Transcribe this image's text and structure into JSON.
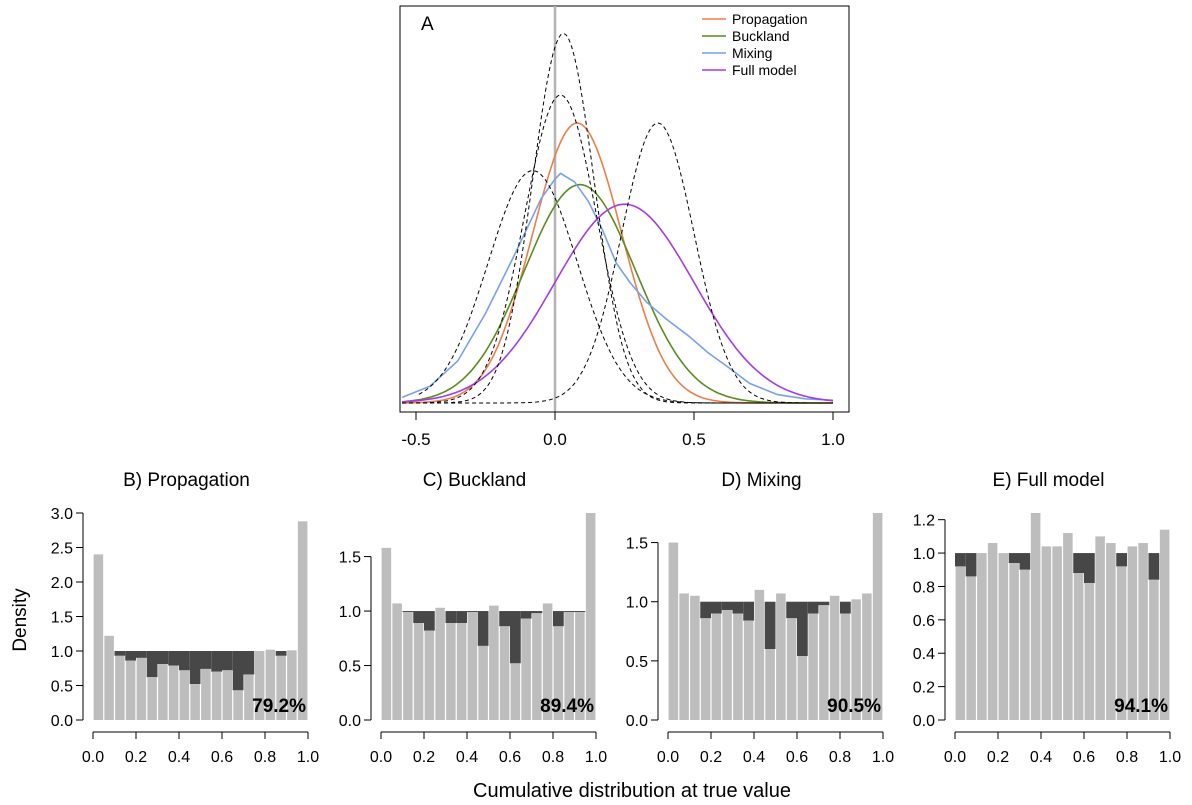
{
  "figure": {
    "ylabel": "Density",
    "xlabel": "Cumulative distribution at true value"
  },
  "chart_data": [
    {
      "type": "line",
      "panel_label": "A",
      "xlim": [
        -0.55,
        1.0
      ],
      "x_ticks": [
        "-0.5",
        "0.0",
        "0.5",
        "1.0"
      ],
      "reference_line_x": 0.0,
      "legend_position": "top-right",
      "series": [
        {
          "name": "Propagation",
          "color": "#EF7D4A",
          "kind": "gaussian",
          "mean": 0.08,
          "sd": 0.16,
          "peak": 1.0
        },
        {
          "name": "Buckland",
          "color": "#5A8C22",
          "kind": "gaussian",
          "mean": 0.09,
          "sd": 0.2,
          "peak": 0.78
        },
        {
          "name": "Mixing",
          "color": "#79A1EC",
          "kind": "points",
          "points": [
            [
              -0.55,
              0.02
            ],
            [
              -0.45,
              0.06
            ],
            [
              -0.35,
              0.15
            ],
            [
              -0.25,
              0.32
            ],
            [
              -0.15,
              0.52
            ],
            [
              -0.05,
              0.73
            ],
            [
              0.0,
              0.8
            ],
            [
              0.02,
              0.82
            ],
            [
              0.07,
              0.79
            ],
            [
              0.12,
              0.72
            ],
            [
              0.17,
              0.62
            ],
            [
              0.22,
              0.5
            ],
            [
              0.27,
              0.43
            ],
            [
              0.33,
              0.36
            ],
            [
              0.4,
              0.3
            ],
            [
              0.48,
              0.24
            ],
            [
              0.55,
              0.18
            ],
            [
              0.62,
              0.13
            ],
            [
              0.7,
              0.07
            ],
            [
              0.8,
              0.03
            ],
            [
              0.9,
              0.015
            ],
            [
              1.0,
              0.01
            ]
          ]
        },
        {
          "name": "Full model",
          "color": "#A43CE6",
          "kind": "gaussian",
          "mean": 0.25,
          "sd": 0.25,
          "peak": 0.71
        },
        {
          "name": "",
          "color": "#000000",
          "dashed": true,
          "kind": "gaussian",
          "mean": 0.03,
          "sd": 0.11,
          "peak": 1.32
        },
        {
          "name": "",
          "color": "#000000",
          "dashed": true,
          "kind": "gaussian",
          "mean": 0.02,
          "sd": 0.13,
          "peak": 1.1
        },
        {
          "name": "",
          "color": "#000000",
          "dashed": true,
          "kind": "gaussian",
          "mean": -0.08,
          "sd": 0.16,
          "peak": 0.83,
          "xrange": [
            -0.49,
            1.0
          ]
        },
        {
          "name": "",
          "color": "#000000",
          "dashed": true,
          "kind": "gaussian",
          "mean": 0.37,
          "sd": 0.13,
          "peak": 1.0
        }
      ]
    },
    {
      "type": "bar",
      "panel_label": "B) Propagation",
      "ylim": [
        0,
        3.0
      ],
      "y_ticks": [
        "0.0",
        "0.5",
        "1.0",
        "1.5",
        "2.0",
        "2.5",
        "3.0"
      ],
      "x_ticks": [
        "0.0",
        "0.2",
        "0.4",
        "0.6",
        "0.8",
        "1.0"
      ],
      "values": [
        2.4,
        1.22,
        0.93,
        0.86,
        0.9,
        0.62,
        0.81,
        0.79,
        0.72,
        0.52,
        0.74,
        0.7,
        0.72,
        0.43,
        0.66,
        1.0,
        1.02,
        0.93,
        1.01,
        2.88
      ],
      "annotation": "79.2%"
    },
    {
      "type": "bar",
      "panel_label": "C) Buckland",
      "ylim": [
        0,
        1.9
      ],
      "y_ticks": [
        "0.0",
        "0.5",
        "1.0",
        "1.5"
      ],
      "x_ticks": [
        "0.0",
        "0.2",
        "0.4",
        "0.6",
        "0.8",
        "1.0"
      ],
      "values": [
        1.58,
        1.07,
        0.99,
        0.89,
        0.82,
        1.03,
        0.89,
        0.89,
        0.99,
        0.68,
        1.05,
        0.86,
        0.52,
        0.93,
        0.98,
        1.07,
        0.86,
        0.99,
        0.99,
        1.9
      ],
      "annotation": "89.4%"
    },
    {
      "type": "bar",
      "panel_label": "D) Mixing",
      "ylim": [
        0,
        1.75
      ],
      "y_ticks": [
        "0.0",
        "0.5",
        "1.0",
        "1.5"
      ],
      "x_ticks": [
        "0.0",
        "0.2",
        "0.4",
        "0.6",
        "0.8",
        "1.0"
      ],
      "values": [
        1.5,
        1.07,
        1.05,
        0.86,
        0.9,
        0.93,
        0.9,
        0.84,
        1.1,
        0.6,
        1.07,
        0.86,
        0.54,
        0.9,
        0.97,
        1.05,
        0.9,
        1.02,
        1.07,
        1.75
      ],
      "annotation": "90.5%"
    },
    {
      "type": "bar",
      "panel_label": "E) Full model",
      "ylim": [
        0,
        1.24
      ],
      "y_ticks": [
        "0.0",
        "0.2",
        "0.4",
        "0.6",
        "0.8",
        "1.0",
        "1.2"
      ],
      "x_ticks": [
        "0.0",
        "0.2",
        "0.4",
        "0.6",
        "0.8",
        "1.0"
      ],
      "values": [
        0.92,
        0.86,
        1.0,
        1.06,
        1.0,
        0.94,
        0.9,
        1.24,
        1.04,
        1.04,
        1.12,
        0.88,
        0.82,
        1.1,
        1.06,
        0.92,
        1.04,
        1.06,
        0.84,
        1.14
      ],
      "annotation": "94.1%"
    }
  ]
}
